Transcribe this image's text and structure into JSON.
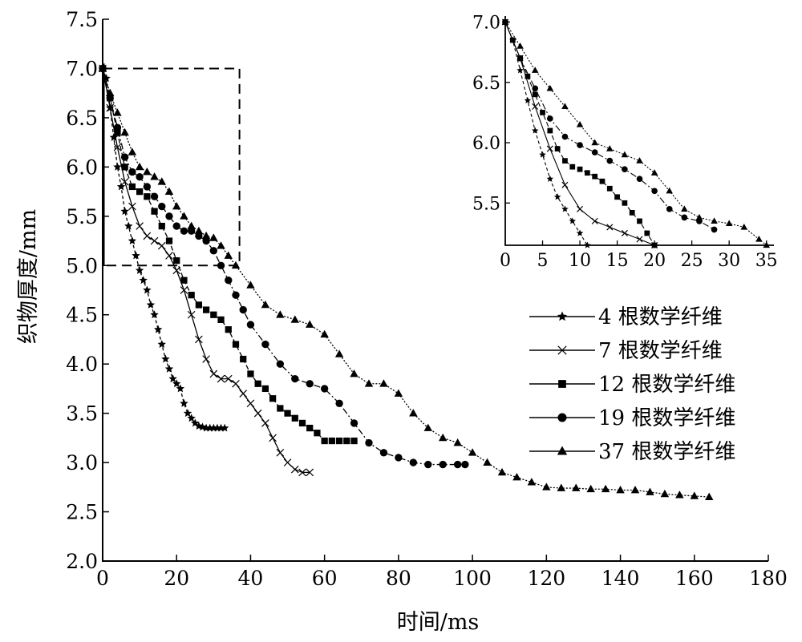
{
  "chart_data": [
    {
      "type": "line",
      "xlabel": "时间/ms",
      "ylabel": "织物厚度/mm",
      "xlim": [
        0,
        180
      ],
      "ylim": [
        2.0,
        7.5
      ],
      "xticks": [
        "0",
        "20",
        "40",
        "60",
        "80",
        "100",
        "120",
        "140",
        "160",
        "180"
      ],
      "yticks": [
        "2.0",
        "2.5",
        "3.0",
        "3.5",
        "4.0",
        "4.5",
        "5.0",
        "5.5",
        "6.0",
        "6.5",
        "7.0",
        "7.5"
      ],
      "zoom_box": {
        "x": [
          0,
          37
        ],
        "y": [
          5.0,
          7.0
        ]
      },
      "legend_position": "right",
      "series": [
        {
          "name": "4 根数学纤维",
          "marker": "star",
          "x": [
            0,
            1,
            2,
            3,
            4,
            5,
            6,
            7,
            8,
            9,
            10,
            11,
            12,
            13,
            14,
            15,
            16,
            17,
            18,
            19,
            20,
            21,
            22,
            23,
            24,
            25,
            26,
            27,
            28,
            29,
            30,
            31,
            32,
            33
          ],
          "y": [
            7.0,
            6.9,
            6.6,
            6.3,
            6.0,
            5.8,
            5.55,
            5.4,
            5.25,
            5.1,
            4.95,
            4.85,
            4.75,
            4.6,
            4.5,
            4.35,
            4.2,
            4.05,
            3.95,
            3.85,
            3.8,
            3.75,
            3.6,
            3.5,
            3.45,
            3.4,
            3.37,
            3.36,
            3.35,
            3.35,
            3.35,
            3.35,
            3.35,
            3.35
          ]
        },
        {
          "name": "7 根数学纤维",
          "marker": "x",
          "x": [
            0,
            2,
            4,
            6,
            8,
            10,
            12,
            14,
            16,
            18,
            20,
            22,
            24,
            26,
            28,
            30,
            32,
            34,
            36,
            38,
            40,
            42,
            44,
            46,
            48,
            50,
            52,
            54,
            56
          ],
          "y": [
            7.0,
            6.6,
            6.2,
            5.85,
            5.6,
            5.4,
            5.3,
            5.25,
            5.2,
            5.1,
            4.95,
            4.75,
            4.5,
            4.25,
            4.05,
            3.9,
            3.85,
            3.85,
            3.8,
            3.7,
            3.6,
            3.5,
            3.4,
            3.25,
            3.1,
            3.0,
            2.93,
            2.9,
            2.9
          ]
        },
        {
          "name": "12 根数学纤维",
          "marker": "square",
          "x": [
            0,
            2,
            4,
            6,
            8,
            10,
            12,
            14,
            16,
            18,
            20,
            22,
            24,
            26,
            28,
            30,
            32,
            34,
            36,
            38,
            40,
            42,
            44,
            46,
            48,
            50,
            52,
            54,
            56,
            58,
            60,
            62,
            64,
            66,
            68
          ],
          "y": [
            7.0,
            6.7,
            6.35,
            6.0,
            5.8,
            5.75,
            5.7,
            5.55,
            5.4,
            5.25,
            5.05,
            4.85,
            4.7,
            4.6,
            4.55,
            4.5,
            4.45,
            4.35,
            4.2,
            4.05,
            3.9,
            3.8,
            3.75,
            3.65,
            3.55,
            3.5,
            3.45,
            3.4,
            3.35,
            3.3,
            3.22,
            3.22,
            3.22,
            3.22,
            3.22
          ]
        },
        {
          "name": "19 根数学纤维",
          "marker": "circle",
          "x": [
            0,
            2,
            4,
            6,
            8,
            10,
            12,
            14,
            16,
            18,
            20,
            22,
            24,
            26,
            28,
            30,
            32,
            34,
            36,
            38,
            40,
            44,
            48,
            52,
            56,
            60,
            64,
            68,
            72,
            76,
            80,
            84,
            88,
            92,
            96,
            98
          ],
          "y": [
            7.0,
            6.7,
            6.4,
            6.1,
            5.95,
            5.9,
            5.8,
            5.7,
            5.6,
            5.5,
            5.4,
            5.35,
            5.35,
            5.3,
            5.25,
            5.15,
            5.0,
            4.85,
            4.7,
            4.55,
            4.4,
            4.2,
            4.0,
            3.85,
            3.8,
            3.75,
            3.6,
            3.4,
            3.2,
            3.1,
            3.05,
            3.0,
            2.98,
            2.98,
            2.98,
            2.98
          ]
        },
        {
          "name": "37 根数学纤维",
          "marker": "triangle",
          "x": [
            0,
            2,
            4,
            6,
            8,
            10,
            12,
            14,
            16,
            18,
            20,
            22,
            24,
            26,
            28,
            30,
            32,
            34,
            36,
            40,
            44,
            48,
            52,
            56,
            60,
            64,
            68,
            72,
            76,
            80,
            84,
            88,
            92,
            96,
            100,
            104,
            108,
            112,
            116,
            120,
            124,
            128,
            132,
            136,
            140,
            144,
            148,
            152,
            156,
            160,
            164
          ],
          "y": [
            7.0,
            6.75,
            6.55,
            6.35,
            6.15,
            6.0,
            5.95,
            5.9,
            5.85,
            5.75,
            5.6,
            5.5,
            5.4,
            5.35,
            5.3,
            5.28,
            5.2,
            5.1,
            5.0,
            4.8,
            4.6,
            4.5,
            4.45,
            4.4,
            4.3,
            4.1,
            3.9,
            3.8,
            3.8,
            3.7,
            3.5,
            3.35,
            3.25,
            3.2,
            3.1,
            3.0,
            2.9,
            2.85,
            2.8,
            2.75,
            2.74,
            2.74,
            2.73,
            2.73,
            2.72,
            2.72,
            2.7,
            2.68,
            2.67,
            2.66,
            2.65
          ]
        }
      ]
    },
    {
      "type": "line",
      "title": "",
      "xlim": [
        0,
        36
      ],
      "ylim": [
        5.15,
        7.05
      ],
      "xticks": [
        "0",
        "5",
        "10",
        "15",
        "20",
        "25",
        "30",
        "35"
      ],
      "yticks": [
        "5.5",
        "6.0",
        "6.5",
        "7.0"
      ],
      "series": [
        {
          "name": "4 根数学纤维",
          "marker": "star",
          "x": [
            0,
            1,
            2,
            3,
            4,
            5,
            6,
            7,
            8,
            9,
            10,
            11
          ],
          "y": [
            7.0,
            6.85,
            6.6,
            6.35,
            6.1,
            5.9,
            5.7,
            5.55,
            5.45,
            5.35,
            5.25,
            5.15
          ]
        },
        {
          "name": "7 根数学纤维",
          "marker": "x",
          "x": [
            0,
            2,
            4,
            6,
            8,
            10,
            12,
            14,
            16,
            18,
            20
          ],
          "y": [
            7.0,
            6.7,
            6.3,
            5.95,
            5.65,
            5.45,
            5.35,
            5.3,
            5.25,
            5.2,
            5.15
          ]
        },
        {
          "name": "12 根数学纤维",
          "marker": "square",
          "x": [
            0,
            1,
            2,
            3,
            4,
            5,
            6,
            7,
            8,
            9,
            10,
            11,
            12,
            13,
            14,
            15,
            16,
            17,
            18,
            19,
            20
          ],
          "y": [
            7.0,
            6.85,
            6.7,
            6.55,
            6.4,
            6.25,
            6.1,
            5.95,
            5.85,
            5.8,
            5.78,
            5.75,
            5.72,
            5.68,
            5.62,
            5.55,
            5.5,
            5.42,
            5.35,
            5.25,
            5.15
          ]
        },
        {
          "name": "19 根数学纤维",
          "marker": "circle",
          "x": [
            0,
            2,
            4,
            6,
            8,
            10,
            12,
            14,
            16,
            18,
            20,
            22,
            24,
            26,
            28
          ],
          "y": [
            7.0,
            6.7,
            6.45,
            6.2,
            6.05,
            5.98,
            5.92,
            5.85,
            5.78,
            5.7,
            5.6,
            5.45,
            5.38,
            5.35,
            5.28
          ]
        },
        {
          "name": "37 根数学纤维",
          "marker": "triangle",
          "x": [
            0,
            2,
            4,
            6,
            8,
            10,
            12,
            14,
            16,
            18,
            20,
            22,
            24,
            26,
            28,
            30,
            32,
            34,
            35
          ],
          "y": [
            7.0,
            6.8,
            6.6,
            6.45,
            6.3,
            6.15,
            6.0,
            5.95,
            5.9,
            5.85,
            5.75,
            5.6,
            5.45,
            5.38,
            5.35,
            5.33,
            5.3,
            5.2,
            5.15
          ]
        }
      ]
    }
  ]
}
